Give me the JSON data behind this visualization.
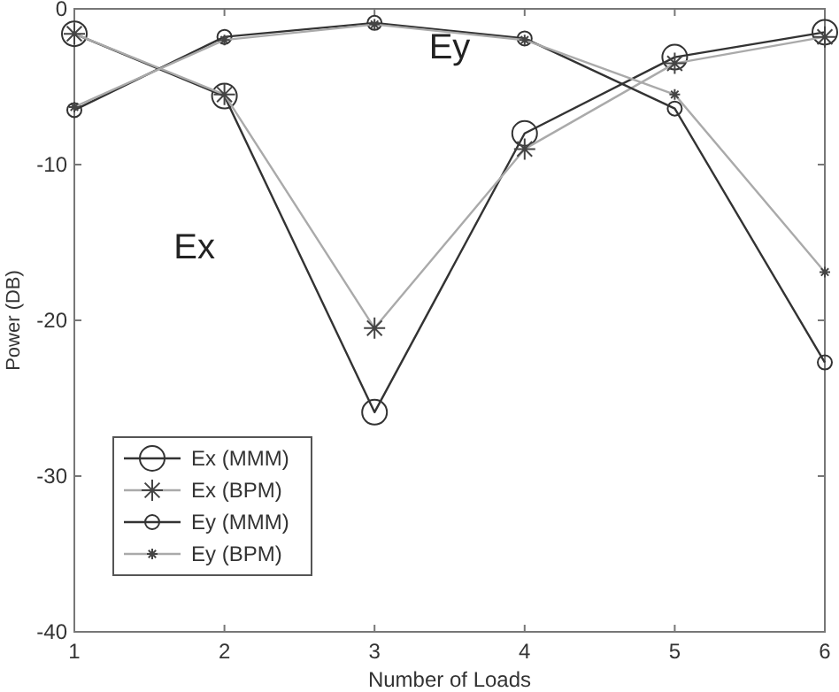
{
  "chart_data": {
    "type": "line",
    "xlabel": "Number of Loads",
    "ylabel": "Power (DB)",
    "x": [
      1,
      2,
      3,
      4,
      5,
      6
    ],
    "xlim": [
      1,
      6
    ],
    "xticks": [
      1,
      2,
      3,
      4,
      5,
      6
    ],
    "ylim": [
      -40,
      0
    ],
    "yticks": [
      -40,
      -30,
      -20,
      -10,
      0
    ],
    "grid": false,
    "legend": "bottom left",
    "series": [
      {
        "name": "Ex (MMM)",
        "color": "#333333",
        "marker": "circle",
        "values": [
          -1.6,
          -5.6,
          -25.9,
          -8.0,
          -3.1,
          -1.5
        ]
      },
      {
        "name": "Ex (BPM)",
        "color": "#aaaaaa",
        "marker": "cross",
        "values": [
          -1.6,
          -5.5,
          -20.5,
          -9.0,
          -3.5,
          -1.8
        ]
      },
      {
        "name": "Ey (MMM)",
        "color": "#333333",
        "marker": "circle",
        "values": [
          -6.5,
          -1.8,
          -0.9,
          -1.9,
          -6.4,
          -22.7
        ]
      },
      {
        "name": "Ey (BPM)",
        "color": "#aaaaaa",
        "marker": "cross",
        "values": [
          -6.3,
          -2.0,
          -1.0,
          -2.0,
          -5.5,
          -16.9
        ]
      }
    ],
    "annotations": [
      "Ex",
      "Ey"
    ]
  }
}
